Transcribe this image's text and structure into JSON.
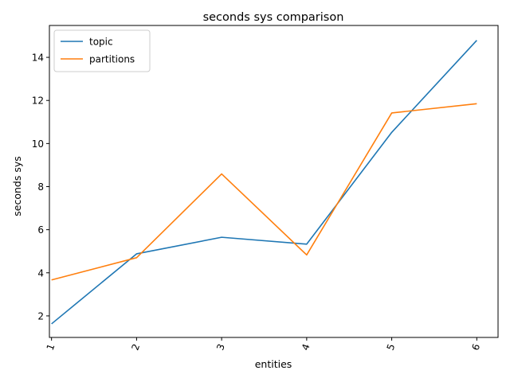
{
  "chart_data": {
    "type": "line",
    "title": "seconds sys comparison",
    "xlabel": "entities",
    "ylabel": "seconds sys",
    "categories": [
      "1",
      "2",
      "3",
      "4",
      "5",
      "6"
    ],
    "x": [
      1,
      2,
      3,
      4,
      5,
      6
    ],
    "series": [
      {
        "name": "topic",
        "color": "#1f77b4",
        "values": [
          1.63,
          4.88,
          5.65,
          5.33,
          10.52,
          14.79
        ]
      },
      {
        "name": "partitions",
        "color": "#ff7f0e",
        "values": [
          3.67,
          4.7,
          8.59,
          4.83,
          11.42,
          11.85
        ]
      }
    ],
    "xlim": [
      0.975,
      6.25
    ],
    "ylim": [
      1.0,
      15.48
    ],
    "yticks": [
      2,
      4,
      6,
      8,
      10,
      12,
      14
    ],
    "xtick_rotation_deg": 70,
    "grid": false,
    "legend_position": "top-left"
  }
}
